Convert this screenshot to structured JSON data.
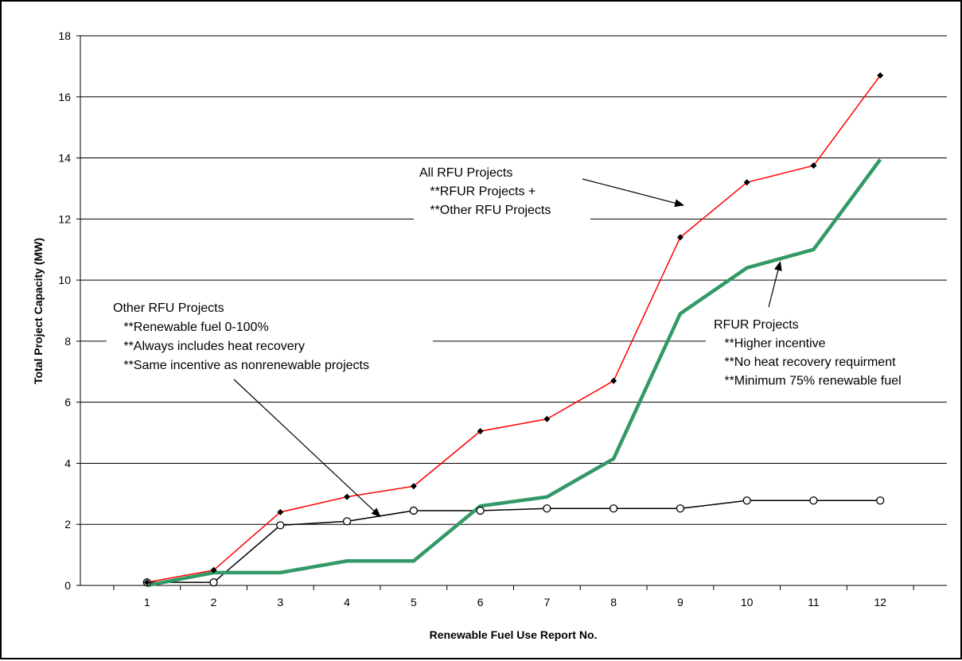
{
  "chart_data": {
    "type": "line",
    "xlabel": "Renewable Fuel Use Report No.",
    "ylabel": "Total Project Capacity (MW)",
    "x": [
      1,
      2,
      3,
      4,
      5,
      6,
      7,
      8,
      9,
      10,
      11,
      12
    ],
    "xlim": [
      0,
      13
    ],
    "ylim": [
      0,
      18
    ],
    "yticks": [
      0,
      2,
      4,
      6,
      8,
      10,
      12,
      14,
      16,
      18
    ],
    "xticks": [
      1,
      2,
      3,
      4,
      5,
      6,
      7,
      8,
      9,
      10,
      11,
      12
    ],
    "grid": true,
    "series": [
      {
        "key": "all",
        "color": "#ff0000",
        "marker": "diamond",
        "values": [
          0.1,
          0.5,
          2.4,
          2.9,
          3.25,
          5.05,
          5.45,
          6.7,
          11.4,
          13.2,
          13.75,
          16.7
        ]
      },
      {
        "key": "rfur",
        "color": "#339966",
        "marker": "none",
        "values": [
          0.0,
          0.42,
          0.42,
          0.8,
          0.8,
          2.6,
          2.9,
          4.15,
          8.9,
          10.4,
          11.0,
          13.95
        ]
      },
      {
        "key": "other",
        "color": "#000000",
        "marker": "circle",
        "values": [
          0.1,
          0.1,
          1.97,
          2.1,
          2.45,
          2.45,
          2.52,
          2.52,
          2.52,
          2.78,
          2.78,
          2.78
        ]
      }
    ],
    "annotations": [
      {
        "key": "all",
        "lines": [
          "All RFU Projects",
          "   **RFUR Projects +",
          "   **Other RFU Projects"
        ],
        "arrow_to": [
          9.05,
          12.45
        ]
      },
      {
        "key": "other",
        "lines": [
          "Other RFU Projects",
          "   **Renewable fuel 0-100%",
          "   **Always includes heat recovery",
          "   **Same incentive as nonrenewable projects"
        ],
        "arrow_to": [
          4.5,
          2.25
        ]
      },
      {
        "key": "rfur",
        "lines": [
          "RFUR Projects",
          "   **Higher incentive",
          "   **No heat recovery requirment",
          "   **Minimum 75% renewable fuel"
        ],
        "arrow_to": [
          10.5,
          10.6
        ]
      }
    ]
  }
}
